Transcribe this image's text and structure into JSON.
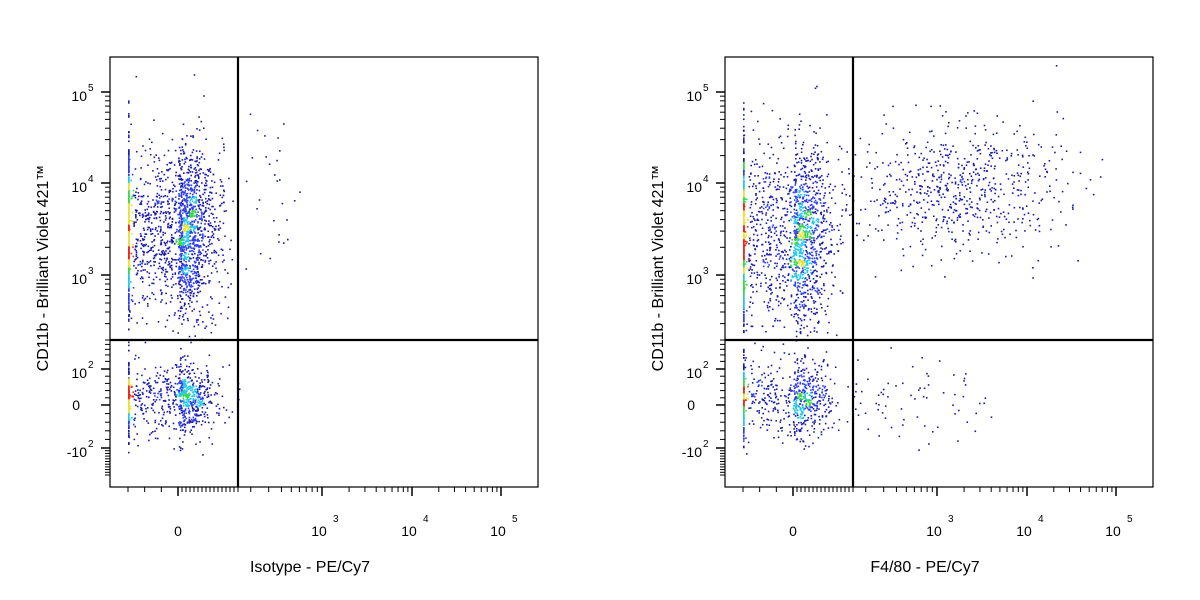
{
  "chart_data": [
    {
      "type": "scatter",
      "scale": "biexponential",
      "xlabel": "Isotype - PE/Cy7",
      "ylabel": "CD11b - Brilliant Violet 421™",
      "xlim": [
        -30,
        200000
      ],
      "ylim": [
        -300,
        200000
      ],
      "x_ticks": [
        {
          "value": 0,
          "base": "0",
          "exp": ""
        },
        {
          "value": 1000,
          "base": "10",
          "exp": "3"
        },
        {
          "value": 10000,
          "base": "10",
          "exp": "4"
        },
        {
          "value": 100000,
          "base": "10",
          "exp": "5"
        }
      ],
      "y_ticks": [
        {
          "value": -100,
          "base": "-10",
          "exp": "2"
        },
        {
          "value": 0,
          "base": "0",
          "exp": ""
        },
        {
          "value": 100,
          "base": "10",
          "exp": "2"
        },
        {
          "value": 1000,
          "base": "10",
          "exp": "3"
        },
        {
          "value": 10000,
          "base": "10",
          "exp": "4"
        },
        {
          "value": 100000,
          "base": "10",
          "exp": "5"
        }
      ],
      "gate": {
        "x": 150,
        "y": 200
      },
      "populations": [
        {
          "x_center": 0,
          "x_spread": 45,
          "y_center": 20,
          "y_spread": 45,
          "count": 900
        },
        {
          "x_center": 0,
          "x_spread": 45,
          "y_center": 3000,
          "y_spread": 0.45,
          "y_log": true,
          "count": 2200
        },
        {
          "x_center": 300,
          "x_spread": 120,
          "y_center": 8000,
          "y_spread": 0.4,
          "y_log": true,
          "count": 30
        }
      ],
      "density_colors": [
        "#1a1aa8",
        "#2f3ee8",
        "#22c8e6",
        "#3ad84a",
        "#e8e23a",
        "#ee2a1a"
      ]
    },
    {
      "type": "scatter",
      "scale": "biexponential",
      "xlabel": "F4/80 - PE/Cy7",
      "ylabel": "CD11b - Brilliant Violet 421™",
      "xlim": [
        -30,
        200000
      ],
      "ylim": [
        -300,
        200000
      ],
      "x_ticks": [
        {
          "value": 0,
          "base": "0",
          "exp": ""
        },
        {
          "value": 1000,
          "base": "10",
          "exp": "3"
        },
        {
          "value": 10000,
          "base": "10",
          "exp": "4"
        },
        {
          "value": 100000,
          "base": "10",
          "exp": "5"
        }
      ],
      "y_ticks": [
        {
          "value": -100,
          "base": "-10",
          "exp": "2"
        },
        {
          "value": 0,
          "base": "0",
          "exp": ""
        },
        {
          "value": 100,
          "base": "10",
          "exp": "2"
        },
        {
          "value": 1000,
          "base": "10",
          "exp": "3"
        },
        {
          "value": 10000,
          "base": "10",
          "exp": "4"
        },
        {
          "value": 100000,
          "base": "10",
          "exp": "5"
        }
      ],
      "gate": {
        "x": 150,
        "y": 200
      },
      "populations": [
        {
          "x_center": 0,
          "x_spread": 45,
          "y_center": 20,
          "y_spread": 45,
          "count": 700
        },
        {
          "x_center": 0,
          "x_spread": 45,
          "y_center": 2500,
          "y_spread": 0.5,
          "y_log": true,
          "count": 1900
        },
        {
          "x_center": 1500,
          "x_spread": 0.6,
          "x_log": true,
          "y_center": 9000,
          "y_spread": 0.35,
          "y_log": true,
          "count": 700
        },
        {
          "x_center": 400,
          "x_spread": 0.5,
          "x_log": true,
          "y_center": 20,
          "y_spread": 60,
          "count": 90
        }
      ],
      "density_colors": [
        "#1a1aa8",
        "#2f3ee8",
        "#22c8e6",
        "#3ad84a",
        "#e8e23a",
        "#ee2a1a"
      ]
    }
  ]
}
